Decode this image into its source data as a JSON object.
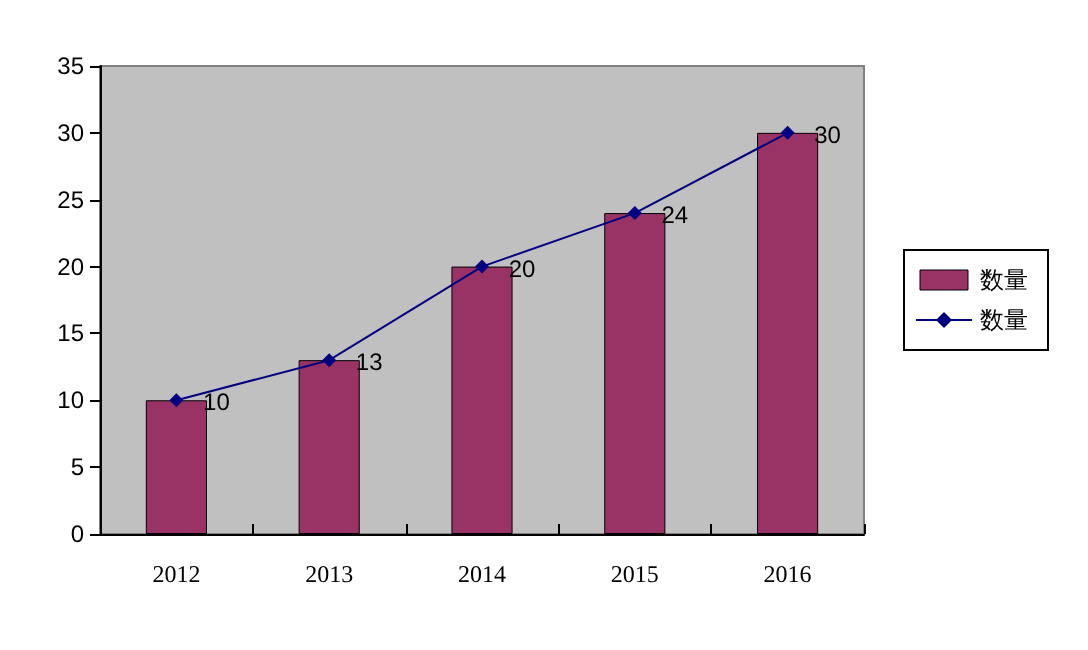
{
  "chart_data": {
    "type": "bar",
    "categories": [
      "2012",
      "2013",
      "2014",
      "2015",
      "2016"
    ],
    "series": [
      {
        "name": "数量",
        "color": "#993366",
        "values": [
          10,
          13,
          20,
          24,
          30
        ],
        "value_labels": [
          "10",
          "13",
          "20",
          "24",
          "30"
        ]
      },
      {
        "name": "数量",
        "type": "line",
        "color": "#000080",
        "values": [
          10,
          13,
          20,
          24,
          30
        ]
      }
    ],
    "ylim": [
      0,
      35
    ],
    "yticks": [
      0,
      5,
      10,
      15,
      20,
      25,
      30,
      35
    ],
    "grid": false,
    "legend": "right",
    "marker": "diamond"
  }
}
